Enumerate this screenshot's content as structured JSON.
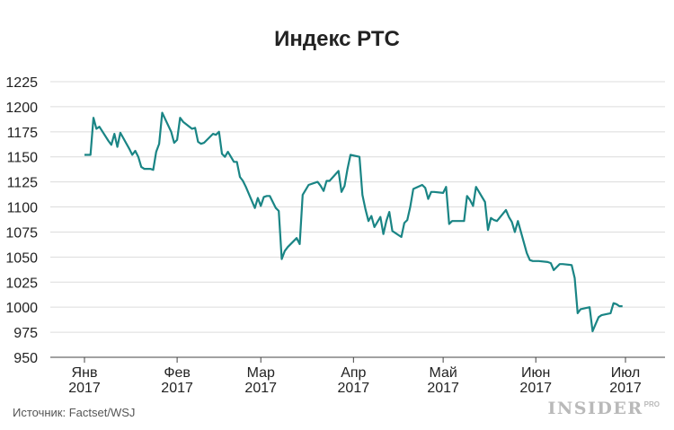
{
  "chart_data": {
    "type": "line",
    "title": "Индекс РТС",
    "xlabel": "",
    "ylabel": "",
    "ylim": [
      950,
      1225
    ],
    "yticks": [
      950,
      975,
      1000,
      1025,
      1050,
      1075,
      1100,
      1125,
      1150,
      1175,
      1200,
      1225
    ],
    "x_tick_labels": [
      {
        "month": "Янв",
        "year": "2017",
        "date": "2017-01-01"
      },
      {
        "month": "Фев",
        "year": "2017",
        "date": "2017-02-01"
      },
      {
        "month": "Мар",
        "year": "2017",
        "date": "2017-03-01"
      },
      {
        "month": "Апр",
        "year": "2017",
        "date": "2017-04-01"
      },
      {
        "month": "Май",
        "year": "2017",
        "date": "2017-05-01"
      },
      {
        "month": "Июн",
        "year": "2017",
        "date": "2017-06-01"
      },
      {
        "month": "Июл",
        "year": "2017",
        "date": "2017-07-01"
      }
    ],
    "grid": "horizontal",
    "line_color": "#1a8585",
    "series": [
      {
        "x": [
          "2017-01-01",
          "2017-01-03",
          "2017-01-04",
          "2017-01-05",
          "2017-01-06",
          "2017-01-09",
          "2017-01-10",
          "2017-01-11",
          "2017-01-12",
          "2017-01-13",
          "2017-01-16",
          "2017-01-17",
          "2017-01-18",
          "2017-01-19",
          "2017-01-20",
          "2017-01-21",
          "2017-01-23",
          "2017-01-24",
          "2017-01-25",
          "2017-01-26",
          "2017-01-27",
          "2017-01-30",
          "2017-01-31",
          "2017-02-01",
          "2017-02-02",
          "2017-02-03",
          "2017-02-06",
          "2017-02-07",
          "2017-02-08",
          "2017-02-09",
          "2017-02-10",
          "2017-02-13",
          "2017-02-14",
          "2017-02-15",
          "2017-02-16",
          "2017-02-17",
          "2017-02-18",
          "2017-02-20",
          "2017-02-21",
          "2017-02-22",
          "2017-02-23",
          "2017-02-24",
          "2017-02-27",
          "2017-02-28",
          "2017-03-01",
          "2017-03-02",
          "2017-03-03",
          "2017-03-04",
          "2017-03-06",
          "2017-03-07",
          "2017-03-08",
          "2017-03-09",
          "2017-03-10",
          "2017-03-13",
          "2017-03-14",
          "2017-03-15",
          "2017-03-16",
          "2017-03-17",
          "2017-03-20",
          "2017-03-21",
          "2017-03-22",
          "2017-03-23",
          "2017-03-24",
          "2017-03-27",
          "2017-03-28",
          "2017-03-29",
          "2017-03-30",
          "2017-03-31",
          "2017-04-03",
          "2017-04-04",
          "2017-04-05",
          "2017-04-06",
          "2017-04-07",
          "2017-04-08",
          "2017-04-10",
          "2017-04-11",
          "2017-04-12",
          "2017-04-13",
          "2017-04-14",
          "2017-04-17",
          "2017-04-18",
          "2017-04-19",
          "2017-04-20",
          "2017-04-21",
          "2017-04-24",
          "2017-04-25",
          "2017-04-26",
          "2017-04-27",
          "2017-04-28",
          "2017-05-01",
          "2017-05-02",
          "2017-05-03",
          "2017-05-04",
          "2017-05-05",
          "2017-05-06",
          "2017-05-08",
          "2017-05-09",
          "2017-05-10",
          "2017-05-11",
          "2017-05-12",
          "2017-05-15",
          "2017-05-16",
          "2017-05-17",
          "2017-05-18",
          "2017-05-19",
          "2017-05-22",
          "2017-05-23",
          "2017-05-24",
          "2017-05-25",
          "2017-05-26",
          "2017-05-29",
          "2017-05-30",
          "2017-05-31",
          "2017-06-02",
          "2017-06-05",
          "2017-06-06",
          "2017-06-07",
          "2017-06-08",
          "2017-06-09",
          "2017-06-10",
          "2017-06-13",
          "2017-06-14",
          "2017-06-15",
          "2017-06-16",
          "2017-06-19",
          "2017-06-20",
          "2017-06-21",
          "2017-06-22",
          "2017-06-23",
          "2017-06-26",
          "2017-06-27",
          "2017-06-28",
          "2017-06-29",
          "2017-06-30"
        ],
        "y": [
          1152,
          1152,
          1189,
          1178,
          1180,
          1166,
          1162,
          1173,
          1160,
          1174,
          1158,
          1152,
          1156,
          1150,
          1140,
          1138,
          1138,
          1137,
          1155,
          1163,
          1194,
          1175,
          1164,
          1167,
          1189,
          1185,
          1178,
          1179,
          1165,
          1163,
          1164,
          1173,
          1172,
          1175,
          1153,
          1150,
          1155,
          1145,
          1145,
          1130,
          1126,
          1120,
          1099,
          1109,
          1101,
          1110,
          1111,
          1111,
          1099,
          1096,
          1048,
          1056,
          1060,
          1069,
          1063,
          1112,
          1117,
          1122,
          1125,
          1121,
          1116,
          1126,
          1126,
          1136,
          1115,
          1121,
          1138,
          1152,
          1150,
          1112,
          1098,
          1086,
          1091,
          1080,
          1090,
          1073,
          1086,
          1095,
          1076,
          1070,
          1084,
          1087,
          1100,
          1118,
          1122,
          1119,
          1108,
          1115,
          1115,
          1114,
          1120,
          1083,
          1086,
          1086,
          1086,
          1086,
          1111,
          1107,
          1101,
          1120,
          1105,
          1077,
          1089,
          1087,
          1086,
          1097,
          1090,
          1085,
          1075,
          1086,
          1054,
          1047,
          1046,
          1046,
          1045,
          1044,
          1037,
          1040,
          1043,
          1043,
          1042,
          1029,
          994,
          998,
          1000,
          976,
          983,
          990,
          992,
          994,
          1004,
          1003,
          1001,
          1001
        ]
      }
    ]
  },
  "source_text": "Источник: Factset/WSJ",
  "logo": {
    "main": "INSIDER",
    "sub": "PRO"
  }
}
